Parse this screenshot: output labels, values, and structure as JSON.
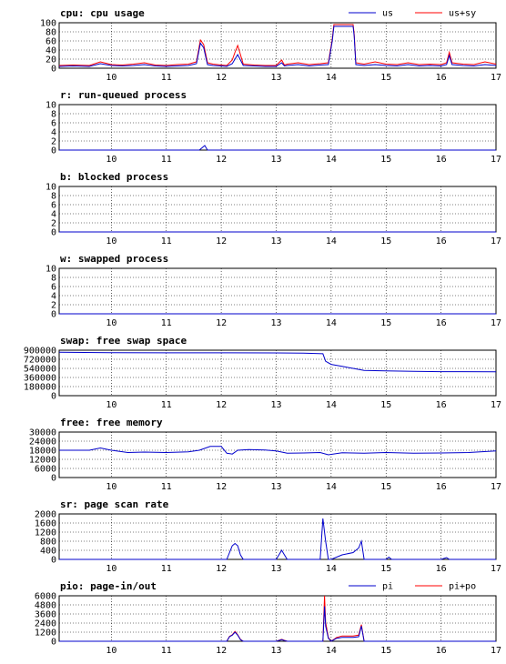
{
  "chart_data": [
    {
      "type": "line",
      "title": "cpu: cpu usage",
      "xlabel": "",
      "ylabel": "",
      "xlim": [
        9.05,
        17
      ],
      "ylim": [
        0,
        100
      ],
      "x_ticks": [
        10,
        11,
        12,
        13,
        14,
        15,
        16,
        17
      ],
      "y_ticks": [
        0,
        20,
        40,
        60,
        80,
        100
      ],
      "legend": [
        "us",
        "us+sy"
      ],
      "legend_position": "top-right",
      "grid": true,
      "colors": [
        "#0000cc",
        "#ff0000"
      ],
      "series": [
        {
          "name": "us",
          "x": [
            9.05,
            9.3,
            9.6,
            9.8,
            10.0,
            10.2,
            10.4,
            10.6,
            10.8,
            11.0,
            11.2,
            11.4,
            11.55,
            11.62,
            11.68,
            11.75,
            11.85,
            12.0,
            12.1,
            12.2,
            12.25,
            12.3,
            12.4,
            12.6,
            12.8,
            13.0,
            13.1,
            13.15,
            13.2,
            13.4,
            13.6,
            13.8,
            13.95,
            14.02,
            14.05,
            14.2,
            14.4,
            14.42,
            14.45,
            14.6,
            14.8,
            15.0,
            15.2,
            15.4,
            15.6,
            15.8,
            16.0,
            16.1,
            16.15,
            16.2,
            16.4,
            16.6,
            16.8,
            17.0
          ],
          "values": [
            4,
            5,
            4,
            10,
            6,
            5,
            6,
            8,
            5,
            4,
            5,
            6,
            10,
            55,
            45,
            8,
            6,
            5,
            4,
            10,
            20,
            30,
            6,
            5,
            4,
            4,
            12,
            5,
            6,
            8,
            5,
            7,
            8,
            60,
            92,
            92,
            92,
            70,
            8,
            6,
            8,
            6,
            5,
            8,
            5,
            6,
            5,
            8,
            28,
            8,
            6,
            5,
            8,
            6
          ]
        },
        {
          "name": "us+sy",
          "x": [
            9.05,
            9.3,
            9.6,
            9.8,
            10.0,
            10.2,
            10.4,
            10.6,
            10.8,
            11.0,
            11.2,
            11.4,
            11.55,
            11.62,
            11.68,
            11.75,
            11.85,
            12.0,
            12.1,
            12.2,
            12.25,
            12.3,
            12.4,
            12.6,
            12.8,
            13.0,
            13.1,
            13.15,
            13.2,
            13.4,
            13.6,
            13.8,
            13.95,
            14.02,
            14.05,
            14.2,
            14.4,
            14.42,
            14.45,
            14.6,
            14.8,
            15.0,
            15.2,
            15.4,
            15.6,
            15.8,
            16.0,
            16.1,
            16.15,
            16.2,
            16.4,
            16.6,
            16.8,
            17.0
          ],
          "values": [
            6,
            7,
            6,
            14,
            8,
            7,
            9,
            12,
            7,
            6,
            8,
            9,
            14,
            62,
            52,
            12,
            9,
            7,
            6,
            18,
            35,
            50,
            9,
            7,
            6,
            6,
            18,
            7,
            9,
            12,
            8,
            10,
            12,
            64,
            96,
            96,
            96,
            75,
            12,
            9,
            14,
            9,
            8,
            12,
            8,
            9,
            8,
            12,
            35,
            12,
            9,
            8,
            14,
            9
          ]
        }
      ]
    },
    {
      "type": "line",
      "title": "r: run-queued process",
      "xlabel": "",
      "ylabel": "",
      "xlim": [
        9.05,
        17
      ],
      "ylim": [
        0,
        10
      ],
      "x_ticks": [
        10,
        11,
        12,
        13,
        14,
        15,
        16,
        17
      ],
      "y_ticks": [
        0,
        2,
        4,
        6,
        8,
        10
      ],
      "grid": true,
      "colors": [
        "#0000cc"
      ],
      "series": [
        {
          "x": [
            9.05,
            11.6,
            11.65,
            11.7,
            11.75,
            17.0
          ],
          "values": [
            0,
            0,
            0.5,
            1,
            0,
            0
          ]
        }
      ]
    },
    {
      "type": "line",
      "title": "b: blocked process",
      "xlabel": "",
      "ylabel": "",
      "xlim": [
        9.05,
        17
      ],
      "ylim": [
        0,
        10
      ],
      "x_ticks": [
        10,
        11,
        12,
        13,
        14,
        15,
        16,
        17
      ],
      "y_ticks": [
        0,
        2,
        4,
        6,
        8,
        10
      ],
      "grid": true,
      "colors": [
        "#0000cc"
      ],
      "series": [
        {
          "x": [
            9.05,
            17.0
          ],
          "values": [
            0,
            0
          ]
        }
      ]
    },
    {
      "type": "line",
      "title": "w: swapped process",
      "xlabel": "",
      "ylabel": "",
      "xlim": [
        9.05,
        17
      ],
      "ylim": [
        0,
        10
      ],
      "x_ticks": [
        10,
        11,
        12,
        13,
        14,
        15,
        16,
        17
      ],
      "y_ticks": [
        0,
        2,
        4,
        6,
        8,
        10
      ],
      "grid": true,
      "colors": [
        "#0000cc"
      ],
      "series": [
        {
          "x": [
            9.05,
            17.0
          ],
          "values": [
            0,
            0
          ]
        }
      ]
    },
    {
      "type": "line",
      "title": "swap: free swap space",
      "xlabel": "",
      "ylabel": "",
      "xlim": [
        9.05,
        17
      ],
      "ylim": [
        0,
        900000
      ],
      "x_ticks": [
        10,
        11,
        12,
        13,
        14,
        15,
        16,
        17
      ],
      "y_ticks": [
        0,
        180000,
        360000,
        540000,
        720000,
        900000
      ],
      "grid": true,
      "colors": [
        "#0000cc"
      ],
      "series": [
        {
          "x": [
            9.05,
            9.5,
            10.0,
            11.0,
            12.0,
            13.0,
            13.5,
            13.85,
            13.9,
            14.0,
            14.2,
            14.4,
            14.6,
            15.0,
            15.5,
            16.0,
            17.0
          ],
          "values": [
            860000,
            855000,
            850000,
            848000,
            848000,
            846000,
            842000,
            830000,
            680000,
            620000,
            580000,
            540000,
            500000,
            490000,
            480000,
            475000,
            472000
          ]
        }
      ]
    },
    {
      "type": "line",
      "title": "free: free memory",
      "xlabel": "",
      "ylabel": "",
      "xlim": [
        9.05,
        17
      ],
      "ylim": [
        0,
        30000
      ],
      "x_ticks": [
        10,
        11,
        12,
        13,
        14,
        15,
        16,
        17
      ],
      "y_ticks": [
        0,
        6000,
        12000,
        18000,
        24000,
        30000
      ],
      "grid": true,
      "colors": [
        "#0000cc"
      ],
      "series": [
        {
          "x": [
            9.05,
            9.4,
            9.6,
            9.8,
            10.0,
            10.3,
            10.6,
            11.0,
            11.4,
            11.6,
            11.8,
            12.0,
            12.1,
            12.2,
            12.3,
            12.5,
            12.8,
            13.0,
            13.2,
            13.5,
            13.8,
            13.95,
            14.2,
            14.6,
            15.0,
            15.5,
            16.0,
            16.5,
            17.0
          ],
          "values": [
            18000,
            18000,
            18000,
            19500,
            18000,
            16500,
            16800,
            16500,
            17000,
            18000,
            20500,
            20500,
            16000,
            15500,
            18000,
            18500,
            18200,
            17500,
            16000,
            16200,
            16500,
            15000,
            16300,
            16000,
            16500,
            16000,
            16200,
            16500,
            17500
          ]
        }
      ]
    },
    {
      "type": "line",
      "title": "sr: page scan rate",
      "xlabel": "",
      "ylabel": "",
      "xlim": [
        9.05,
        17
      ],
      "ylim": [
        0,
        2000
      ],
      "x_ticks": [
        10,
        11,
        12,
        13,
        14,
        15,
        16,
        17
      ],
      "y_ticks": [
        0,
        400,
        800,
        1200,
        1600,
        2000
      ],
      "grid": true,
      "colors": [
        "#0000cc"
      ],
      "series": [
        {
          "x": [
            9.05,
            12.1,
            12.15,
            12.2,
            12.25,
            12.3,
            12.35,
            12.4,
            13.0,
            13.1,
            13.15,
            13.2,
            13.8,
            13.85,
            13.9,
            13.95,
            14.0,
            14.2,
            14.4,
            14.45,
            14.5,
            14.55,
            14.6,
            15.0,
            15.05,
            15.1,
            16.0,
            16.1,
            16.15,
            17.0
          ],
          "values": [
            0,
            0,
            300,
            600,
            700,
            600,
            200,
            0,
            0,
            400,
            200,
            0,
            0,
            1800,
            800,
            0,
            0,
            200,
            300,
            400,
            500,
            800,
            0,
            0,
            100,
            0,
            0,
            80,
            0,
            0
          ]
        }
      ]
    },
    {
      "type": "line",
      "title": "pio: page-in/out",
      "xlabel": "",
      "ylabel": "",
      "xlim": [
        9.05,
        17
      ],
      "ylim": [
        0,
        6000
      ],
      "x_ticks": [
        10,
        11,
        12,
        13,
        14,
        15,
        16,
        17
      ],
      "y_ticks": [
        0,
        1200,
        2400,
        3600,
        4800,
        6000
      ],
      "legend": [
        "pi",
        "pi+po"
      ],
      "legend_position": "top-right",
      "grid": true,
      "colors": [
        "#0000cc",
        "#ff0000"
      ],
      "series": [
        {
          "name": "pi",
          "x": [
            9.05,
            12.1,
            12.15,
            12.2,
            12.25,
            12.3,
            12.35,
            12.4,
            13.0,
            13.1,
            13.15,
            13.2,
            13.85,
            13.88,
            13.9,
            13.95,
            14.0,
            14.1,
            14.2,
            14.4,
            14.5,
            14.55,
            14.6,
            15.0,
            17.0
          ],
          "values": [
            0,
            0,
            600,
            800,
            1200,
            800,
            200,
            0,
            0,
            200,
            100,
            0,
            0,
            4600,
            2000,
            400,
            0,
            400,
            500,
            500,
            600,
            2000,
            0,
            0,
            0
          ]
        },
        {
          "name": "pi+po",
          "x": [
            9.05,
            12.1,
            12.15,
            12.2,
            12.25,
            12.3,
            12.35,
            12.4,
            13.0,
            13.1,
            13.15,
            13.2,
            13.85,
            13.88,
            13.9,
            13.95,
            14.0,
            14.1,
            14.2,
            14.4,
            14.5,
            14.55,
            14.6,
            15.0,
            17.0
          ],
          "values": [
            0,
            0,
            650,
            850,
            1300,
            850,
            250,
            0,
            0,
            250,
            120,
            0,
            0,
            6000,
            2500,
            500,
            0,
            500,
            700,
            700,
            800,
            2200,
            0,
            0,
            0
          ]
        }
      ]
    }
  ]
}
